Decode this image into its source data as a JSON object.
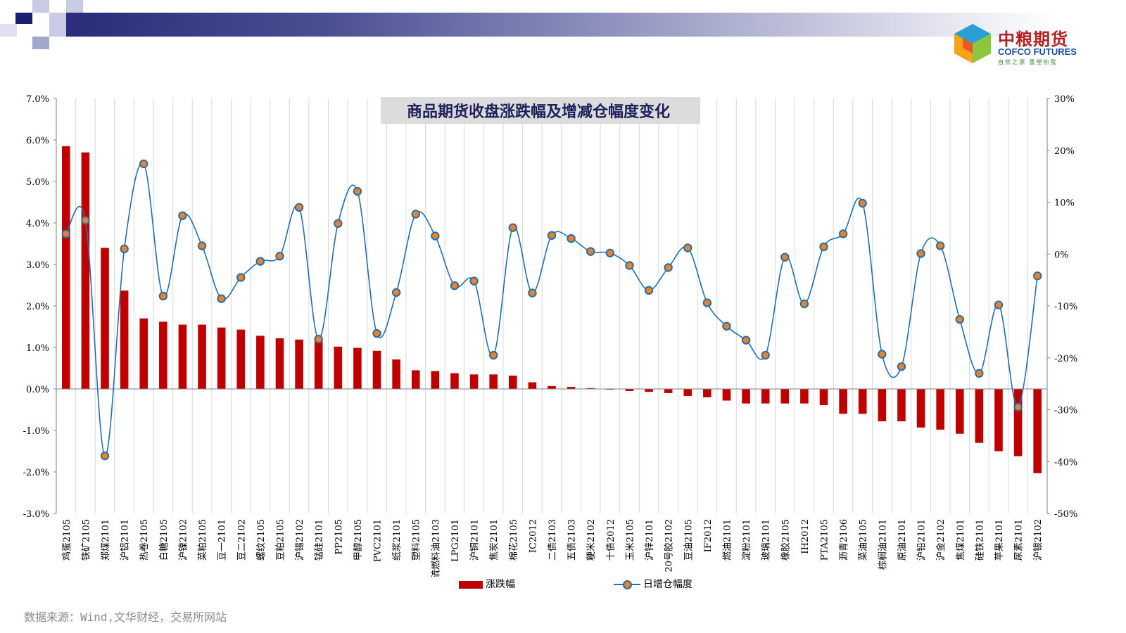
{
  "logo": {
    "name_cn": "中粮期货",
    "name_en": "COFCO FUTURES",
    "slogan": "自然之源 重塑你我"
  },
  "source_note": "数据来源：Wind,文华财经，交易所网站",
  "legend": {
    "bar_label": "涨跌幅",
    "line_label": "日增仓幅度"
  },
  "colors": {
    "bar": "#c00000",
    "line": "#1f6fb2",
    "marker_fill": "#f08020",
    "header": "#2b2f7a"
  },
  "chart_data": {
    "type": "bar",
    "title": "商品期货收盘涨跌幅及增减仓幅度变化",
    "categories": [
      "鸡蛋2105",
      "铁矿2105",
      "郑煤2101",
      "沪铝2101",
      "热卷2105",
      "白糖2105",
      "沪镍2102",
      "菜粕2105",
      "豆一2101",
      "豆二2102",
      "螺纹2105",
      "豆粕2105",
      "沪锡2102",
      "锰硅2101",
      "PP2105",
      "甲醇2105",
      "PVC2101",
      "纸浆2101",
      "塑料2105",
      "低硫燃料油2103",
      "LPG2101",
      "沪铜2101",
      "焦炭2101",
      "棉花2105",
      "IC2012",
      "二债2103",
      "五债2103",
      "粳米2102",
      "十债2012",
      "玉米2105",
      "沪锌2101",
      "20号胶2102",
      "豆油2105",
      "IF2012",
      "燃油2101",
      "淀粉2101",
      "玻璃2101",
      "橡胶2105",
      "IH2012",
      "PTA2105",
      "沥青2106",
      "菜油2105",
      "棕榈油2101",
      "原油2101",
      "沪铅2101",
      "沪金2102",
      "焦煤2101",
      "硅铁2101",
      "苹果2101",
      "尿素2101",
      "沪银2102"
    ],
    "series": [
      {
        "name": "涨跌幅",
        "axis": "left",
        "type": "bar",
        "values": [
          5.85,
          5.7,
          3.4,
          2.37,
          1.7,
          1.62,
          1.55,
          1.55,
          1.48,
          1.43,
          1.28,
          1.22,
          1.19,
          1.17,
          1.02,
          0.99,
          0.92,
          0.71,
          0.45,
          0.43,
          0.38,
          0.35,
          0.35,
          0.32,
          0.16,
          0.07,
          0.05,
          0.02,
          0.0,
          -0.05,
          -0.07,
          -0.1,
          -0.17,
          -0.2,
          -0.28,
          -0.35,
          -0.35,
          -0.35,
          -0.35,
          -0.39,
          -0.6,
          -0.6,
          -0.78,
          -0.78,
          -0.93,
          -0.98,
          -1.08,
          -1.3,
          -1.5,
          -1.62,
          -2.03
        ]
      },
      {
        "name": "日增仓幅度",
        "axis": "right",
        "type": "line",
        "values": [
          3.9,
          6.5,
          -38.9,
          1.0,
          17.4,
          -8.1,
          7.4,
          1.6,
          -8.6,
          -4.5,
          -1.4,
          -0.4,
          9.0,
          -16.4,
          5.9,
          12.1,
          -15.3,
          -7.4,
          7.7,
          3.5,
          -6.1,
          -5.2,
          -19.5,
          5.1,
          -7.5,
          3.6,
          3.0,
          0.5,
          0.2,
          -2.2,
          -7.0,
          -2.6,
          1.2,
          -9.4,
          -13.9,
          -16.6,
          -19.5,
          -0.6,
          -9.6,
          1.4,
          3.9,
          9.8,
          -19.3,
          -21.7,
          0.1,
          1.6,
          -12.6,
          -23.0,
          -9.8,
          -29.5,
          -4.2
        ]
      }
    ],
    "ylim": [
      -3.0,
      7.0
    ],
    "y_ticks": [
      "7.0%",
      "6.0%",
      "5.0%",
      "4.0%",
      "3.0%",
      "2.0%",
      "1.0%",
      "0.0%",
      "-1.0%",
      "-2.0%",
      "-3.0%"
    ],
    "y2lim": [
      -50,
      30
    ],
    "y2_ticks": [
      "30%",
      "20%",
      "10%",
      "0%",
      "-10%",
      "-20%",
      "-30%",
      "-40%",
      "-50%"
    ],
    "grid": "vertical",
    "legend_position": "bottom"
  }
}
